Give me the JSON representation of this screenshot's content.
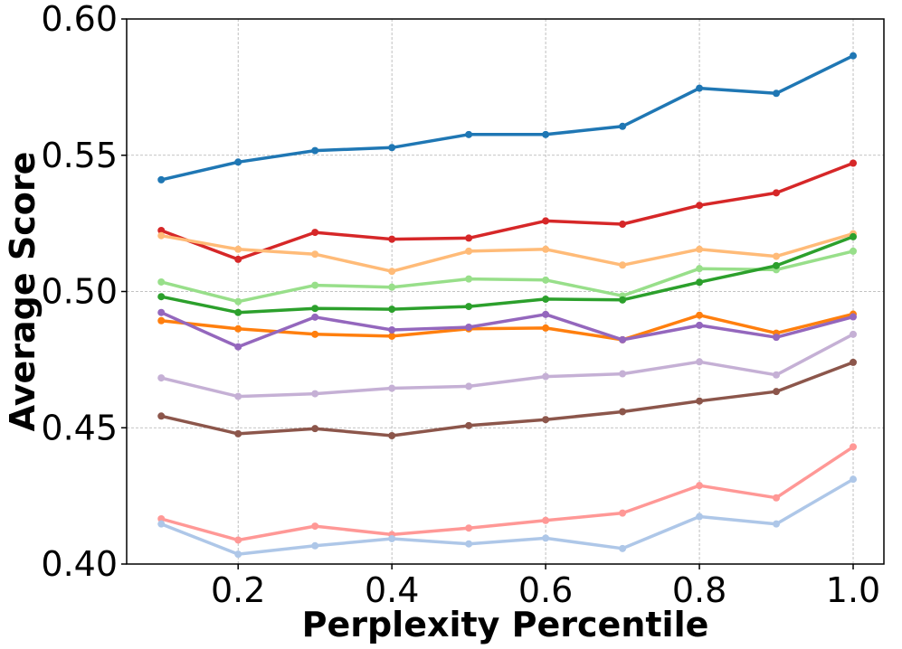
{
  "chart_data": {
    "type": "line",
    "title": "",
    "xlabel": "Perplexity Percentile",
    "ylabel": "Average Score",
    "xlim": [
      0.055,
      1.04
    ],
    "ylim": [
      0.4,
      0.6
    ],
    "grid": true,
    "x": [
      0.1,
      0.2,
      0.3,
      0.4,
      0.5,
      0.6,
      0.7,
      0.8,
      0.9,
      1.0
    ],
    "xticks": [
      0.2,
      0.4,
      0.6,
      0.8,
      1.0
    ],
    "xtick_labels": [
      "0.2",
      "0.4",
      "0.6",
      "0.8",
      "1.0"
    ],
    "yticks": [
      0.4,
      0.45,
      0.5,
      0.55,
      0.6
    ],
    "ytick_labels": [
      "0.40",
      "0.45",
      "0.50",
      "0.55",
      "0.60"
    ],
    "series": [
      {
        "name": "blue",
        "color": "#1f77b4",
        "values": [
          0.541,
          0.5475,
          0.5517,
          0.5528,
          0.5576,
          0.5576,
          0.5606,
          0.5746,
          0.5727,
          0.5865
        ]
      },
      {
        "name": "red",
        "color": "#d62728",
        "values": [
          0.5224,
          0.5118,
          0.5217,
          0.5192,
          0.5196,
          0.5259,
          0.5247,
          0.5316,
          0.5362,
          0.5471
        ]
      },
      {
        "name": "light orange",
        "color": "#ffbb78",
        "values": [
          0.5205,
          0.5155,
          0.5137,
          0.5074,
          0.5148,
          0.5155,
          0.5097,
          0.5155,
          0.5129,
          0.5212
        ]
      },
      {
        "name": "light green",
        "color": "#98df8a",
        "values": [
          0.5035,
          0.4963,
          0.5023,
          0.5016,
          0.5046,
          0.5042,
          0.4984,
          0.5084,
          0.508,
          0.5148
        ]
      },
      {
        "name": "green",
        "color": "#2ca02c",
        "values": [
          0.4981,
          0.4923,
          0.4938,
          0.4935,
          0.4945,
          0.4972,
          0.4969,
          0.5034,
          0.5095,
          0.5201
        ]
      },
      {
        "name": "orange",
        "color": "#ff7f0e",
        "values": [
          0.4893,
          0.4863,
          0.4843,
          0.4836,
          0.4863,
          0.4866,
          0.4823,
          0.4913,
          0.4847,
          0.4917
        ]
      },
      {
        "name": "purple",
        "color": "#9467bd",
        "values": [
          0.4923,
          0.4797,
          0.4906,
          0.4859,
          0.4869,
          0.4916,
          0.4823,
          0.4876,
          0.4832,
          0.4907
        ]
      },
      {
        "name": "light purple",
        "color": "#c5b0d5",
        "values": [
          0.4683,
          0.4615,
          0.4625,
          0.4645,
          0.4652,
          0.4688,
          0.4698,
          0.4742,
          0.4694,
          0.4843
        ]
      },
      {
        "name": "brown",
        "color": "#8c564b",
        "values": [
          0.4543,
          0.4478,
          0.4497,
          0.4471,
          0.4508,
          0.453,
          0.4559,
          0.4598,
          0.4633,
          0.474
        ]
      },
      {
        "name": "light red",
        "color": "#ff9896",
        "values": [
          0.4166,
          0.4088,
          0.4139,
          0.4108,
          0.4132,
          0.416,
          0.4187,
          0.4288,
          0.4243,
          0.443
        ]
      },
      {
        "name": "light blue",
        "color": "#aec7e8",
        "values": [
          0.4147,
          0.4036,
          0.4067,
          0.4093,
          0.4074,
          0.4095,
          0.4057,
          0.4174,
          0.4147,
          0.4311
        ]
      }
    ]
  }
}
